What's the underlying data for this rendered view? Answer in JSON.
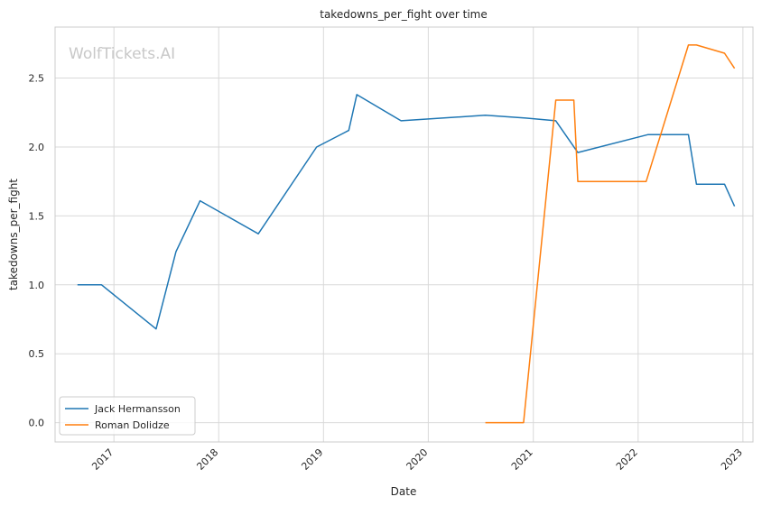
{
  "chart_data": {
    "type": "line",
    "title": "takedowns_per_fight over time",
    "xlabel": "Date",
    "ylabel": "takedowns_per_fight",
    "watermark": "WolfTickets.AI",
    "x_tick_labels": [
      "2017",
      "2018",
      "2019",
      "2020",
      "2021",
      "2022",
      "2023"
    ],
    "y_ticks": [
      0.0,
      0.5,
      1.0,
      1.5,
      2.0,
      2.5
    ],
    "y_tick_labels": [
      "0.0",
      "0.5",
      "1.0",
      "1.5",
      "2.0",
      "2.5"
    ],
    "xlim": [
      "2016-06-10",
      "2023-02-05"
    ],
    "ylim": [
      -0.14,
      2.87
    ],
    "grid": true,
    "legend_position": "lower-left",
    "series": [
      {
        "name": "Jack Hermansson",
        "color": "#1f77b4",
        "points": [
          [
            "2016-08-27",
            1.0
          ],
          [
            "2016-11-19",
            1.0
          ],
          [
            "2017-05-28",
            0.68
          ],
          [
            "2017-08-05",
            1.24
          ],
          [
            "2017-10-28",
            1.61
          ],
          [
            "2018-05-19",
            1.37
          ],
          [
            "2018-12-08",
            2.0
          ],
          [
            "2019-03-30",
            2.12
          ],
          [
            "2019-04-27",
            2.38
          ],
          [
            "2019-09-28",
            2.19
          ],
          [
            "2020-07-18",
            2.23
          ],
          [
            "2020-12-05",
            2.21
          ],
          [
            "2021-03-20",
            2.19
          ],
          [
            "2021-06-05",
            1.96
          ],
          [
            "2022-02-05",
            2.09
          ],
          [
            "2022-06-25",
            2.09
          ],
          [
            "2022-07-23",
            1.73
          ],
          [
            "2022-10-29",
            1.73
          ],
          [
            "2022-12-03",
            1.57
          ]
        ]
      },
      {
        "name": "Roman Dolidze",
        "color": "#ff7f0e",
        "points": [
          [
            "2020-07-18",
            0.0
          ],
          [
            "2020-11-28",
            0.0
          ],
          [
            "2021-03-20",
            2.34
          ],
          [
            "2021-05-22",
            2.34
          ],
          [
            "2021-06-05",
            1.75
          ],
          [
            "2022-01-29",
            1.75
          ],
          [
            "2022-06-25",
            2.74
          ],
          [
            "2022-07-23",
            2.74
          ],
          [
            "2022-10-29",
            2.68
          ],
          [
            "2022-12-03",
            2.57
          ]
        ]
      }
    ]
  }
}
